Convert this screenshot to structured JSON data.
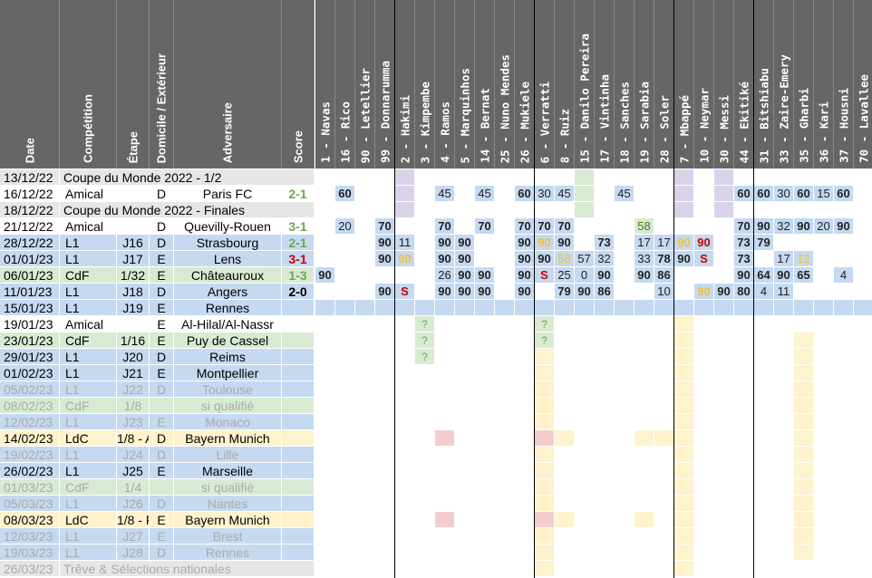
{
  "headers": {
    "date": "Date",
    "competition": "Compétition",
    "etape": "Étape",
    "domicile": "Domicile / Extérieur",
    "adversaire": "Adversaire",
    "score": "Score"
  },
  "players": [
    "1 - Navas",
    "16 - Rico",
    "90 - Letellier",
    "99 - Donnarumma",
    "2 - Hakimi",
    "3 - Kimpembe",
    "4 - Ramos",
    "5 - Marquinhos",
    "14 - Bernat",
    "25 - Nuno Mendes",
    "26 - Mukiele",
    "6 - Verratti",
    "8 - Ruiz",
    "15 - Danilo Pereira",
    "17 - Vintinha",
    "18 - Sanches",
    "19 - Sarabia",
    "28 - Soler",
    "7 - Mbappé",
    "10 - Neymar",
    "30 - Messi",
    "44 - Ekitiké",
    "31 - Bitshiabu",
    "33 - Zaire-Emery",
    "35 - Gharbi",
    "36 - Kari",
    "37 - Housni",
    "70 - Lavallee"
  ],
  "colors": {
    "blue": "#c5d9f1",
    "blue_dark": "#8eaadb",
    "green": "#d9ead3",
    "yellow": "#fff2cc",
    "purple": "#d9d2e9",
    "red": "#f4cccc",
    "orange": "#fce5cd",
    "header": "#666666",
    "score_green": "#6aa84f",
    "score_red": "#cc0000",
    "yellow_text": "#f1c232"
  },
  "matches": [
    {
      "date": "13/12/22",
      "comp": "Coupe du Monde 2022 - 1/2",
      "etape": "",
      "dom": "",
      "adv": "",
      "score": "",
      "bg": "#e6e6e6"
    },
    {
      "date": "16/12/22",
      "comp": "Amical",
      "etape": "",
      "dom": "D",
      "adv": "Paris FC",
      "score": "2-1",
      "sc": "#6aa84f",
      "bg": "#ffffff",
      "v": {
        "1": "60",
        "6": "45",
        "8": "45",
        "10": "60",
        "11": "30",
        "12": "45",
        "15": "45",
        "21": "60",
        "22": "60",
        "23": "30",
        "24": "60",
        "25": "15",
        "26": "60"
      }
    },
    {
      "date": "18/12/22",
      "comp": "Coupe du Monde 2022 - Finales",
      "etape": "",
      "dom": "",
      "adv": "",
      "score": "",
      "bg": "#e6e6e6"
    },
    {
      "date": "21/12/22",
      "comp": "Amical",
      "etape": "",
      "dom": "D",
      "adv": "Quevilly-Rouen",
      "score": "3-1",
      "sc": "#6aa84f",
      "bg": "#ffffff",
      "v": {
        "1": "20",
        "3": "70",
        "6": "70",
        "8": "70",
        "10": "70",
        "11": "70",
        "12": "70",
        "16": "58",
        "21": "70",
        "22": "90",
        "23": "32",
        "24": "90",
        "25": "20",
        "26": "90"
      }
    },
    {
      "date": "28/12/22",
      "comp": "L1",
      "etape": "J16",
      "dom": "D",
      "adv": "Strasbourg",
      "score": "2-1",
      "sc": "#6aa84f",
      "bg": "#c5d9f1",
      "v": {
        "3": "90",
        "4": "11",
        "6": "90",
        "7": "90",
        "10": "90",
        "11": "90",
        "12": "90",
        "14": "73",
        "16": "17",
        "17": "17",
        "18": "90",
        "19": "90",
        "21": "73",
        "22": "79"
      }
    },
    {
      "date": "01/01/23",
      "comp": "L1",
      "etape": "J17",
      "dom": "E",
      "adv": "Lens",
      "score": "3-1",
      "sc": "#cc0000",
      "bg": "#c5d9f1",
      "v": {
        "3": "90",
        "4": "90",
        "6": "90",
        "7": "90",
        "10": "90",
        "11": "90",
        "12": "58",
        "13": "57",
        "14": "32",
        "16": "33",
        "17": "78",
        "18": "90",
        "19": "S",
        "21": "73",
        "23": "17",
        "24": "12"
      }
    },
    {
      "date": "06/01/23",
      "comp": "CdF",
      "etape": "1/32",
      "dom": "E",
      "adv": "Châteauroux",
      "score": "1-3",
      "sc": "#6aa84f",
      "bg": "#d9ead3",
      "v": {
        "0": "90",
        "6": "26",
        "7": "90",
        "8": "90",
        "10": "90",
        "11": "S",
        "12": "25",
        "13": "0",
        "14": "90",
        "16": "90",
        "17": "86",
        "21": "90",
        "22": "64",
        "23": "90",
        "24": "65",
        "26": "4"
      }
    },
    {
      "date": "11/01/23",
      "comp": "L1",
      "etape": "J18",
      "dom": "D",
      "adv": "Angers",
      "score": "2-0",
      "sc": "#000000",
      "bg": "#c5d9f1",
      "v": {
        "3": "90",
        "4": "S",
        "6": "90",
        "7": "90",
        "8": "90",
        "10": "90",
        "12": "79",
        "13": "90",
        "14": "86",
        "17": "10",
        "19": "90",
        "20": "90",
        "21": "80",
        "22": "4",
        "23": "11"
      }
    },
    {
      "date": "15/01/23",
      "comp": "L1",
      "etape": "J19",
      "dom": "E",
      "adv": "Rennes",
      "score": "",
      "bg": "#c5d9f1"
    },
    {
      "date": "19/01/23",
      "comp": "Amical",
      "etape": "",
      "dom": "E",
      "adv": "Al-Hilal/Al-Nassr",
      "score": "",
      "bg": "#ffffff",
      "v": {
        "5": "?",
        "11": "?"
      }
    },
    {
      "date": "23/01/23",
      "comp": "CdF",
      "etape": "1/16",
      "dom": "E",
      "adv": "Puy de Cassel",
      "score": "",
      "bg": "#d9ead3",
      "v": {
        "5": "?",
        "11": "?"
      }
    },
    {
      "date": "29/01/23",
      "comp": "L1",
      "etape": "J20",
      "dom": "D",
      "adv": "Reims",
      "score": "",
      "bg": "#c5d9f1",
      "v": {
        "5": "?"
      }
    },
    {
      "date": "01/02/23",
      "comp": "L1",
      "etape": "J21",
      "dom": "E",
      "adv": "Montpellier",
      "score": "",
      "bg": "#c5d9f1"
    },
    {
      "date": "05/02/23",
      "comp": "L1",
      "etape": "J22",
      "dom": "D",
      "adv": "Toulouse",
      "score": "",
      "bg": "#c5d9f1",
      "dim": true
    },
    {
      "date": "08/02/23",
      "comp": "CdF",
      "etape": "1/8",
      "dom": "",
      "adv": "si qualifié",
      "score": "",
      "bg": "#d9ead3",
      "dim": true
    },
    {
      "date": "12/02/23",
      "comp": "L1",
      "etape": "J23",
      "dom": "E",
      "adv": "Monaco",
      "score": "",
      "bg": "#c5d9f1",
      "dim": true
    },
    {
      "date": "14/02/23",
      "comp": "LdC",
      "etape": "1/8 - A",
      "dom": "D",
      "adv": "Bayern Munich",
      "score": "",
      "bg": "#fff2cc"
    },
    {
      "date": "19/02/23",
      "comp": "L1",
      "etape": "J24",
      "dom": "D",
      "adv": "Lille",
      "score": "",
      "bg": "#c5d9f1",
      "dim": true
    },
    {
      "date": "26/02/23",
      "comp": "L1",
      "etape": "J25",
      "dom": "E",
      "adv": "Marseille",
      "score": "",
      "bg": "#c5d9f1"
    },
    {
      "date": "01/03/23",
      "comp": "CdF",
      "etape": "1/4",
      "dom": "",
      "adv": "si qualifié",
      "score": "",
      "bg": "#d9ead3",
      "dim": true
    },
    {
      "date": "05/03/23",
      "comp": "L1",
      "etape": "J26",
      "dom": "D",
      "adv": "Nantes",
      "score": "",
      "bg": "#c5d9f1",
      "dim": true
    },
    {
      "date": "08/03/23",
      "comp": "LdC",
      "etape": "1/8 - R",
      "dom": "E",
      "adv": "Bayern Munich",
      "score": "",
      "bg": "#fff2cc"
    },
    {
      "date": "12/03/23",
      "comp": "L1",
      "etape": "J27",
      "dom": "E",
      "adv": "Brest",
      "score": "",
      "bg": "#c5d9f1",
      "dim": true
    },
    {
      "date": "19/03/23",
      "comp": "L1",
      "etape": "J28",
      "dom": "D",
      "adv": "Rennes",
      "score": "",
      "bg": "#c5d9f1",
      "dim": true
    },
    {
      "date": "26/03/23",
      "comp": "Trêve & Sélections nationales",
      "etape": "",
      "dom": "",
      "adv": "",
      "score": "",
      "bg": "#e6e6e6",
      "dim": true
    }
  ]
}
